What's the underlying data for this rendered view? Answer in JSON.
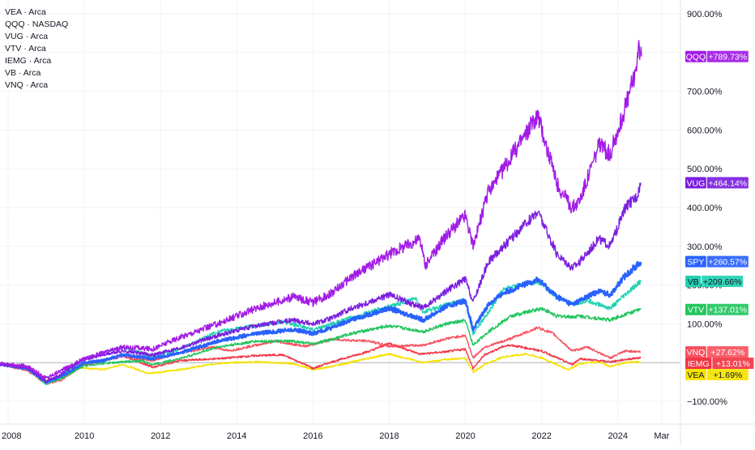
{
  "legend": [
    {
      "ticker": "VEA",
      "exchange": "Arca"
    },
    {
      "ticker": "QQQ",
      "exchange": "NASDAQ"
    },
    {
      "ticker": "VUG",
      "exchange": "Arca"
    },
    {
      "ticker": "VTV",
      "exchange": "Arca"
    },
    {
      "ticker": "IEMG",
      "exchange": "Arca"
    },
    {
      "ticker": "VB",
      "exchange": "Arca"
    },
    {
      "ticker": "VNQ",
      "exchange": "Arca"
    }
  ],
  "chart_data": {
    "type": "line",
    "y_unit": "% change",
    "ylim": [
      -160,
      960
    ],
    "xlim": [
      2008.0,
      2025.6
    ],
    "grid": true,
    "y_ticks": [
      {
        "v": 900,
        "label": "900.00%"
      },
      {
        "v": 700,
        "label": "700.00%"
      },
      {
        "v": 600,
        "label": "600.00%"
      },
      {
        "v": 500,
        "label": "500.00%"
      },
      {
        "v": 400,
        "label": "400.00%"
      },
      {
        "v": 300,
        "label": "300.00%"
      },
      {
        "v": 200,
        "label": "200.00%"
      },
      {
        "v": 100,
        "label": "100.00%"
      },
      {
        "v": -100,
        "label": "−100.00%"
      }
    ],
    "x_ticks": [
      {
        "v": 2008.0,
        "label": "2008"
      },
      {
        "v": 2010.0,
        "label": "2010"
      },
      {
        "v": 2012.0,
        "label": "2012"
      },
      {
        "v": 2014.0,
        "label": "2014"
      },
      {
        "v": 2016.0,
        "label": "2016"
      },
      {
        "v": 2018.0,
        "label": "2018"
      },
      {
        "v": 2020.0,
        "label": "2020"
      },
      {
        "v": 2022.0,
        "label": "2022"
      },
      {
        "v": 2024.0,
        "label": "2024"
      },
      {
        "v": 2025.15,
        "label": "Mar"
      }
    ],
    "series": [
      {
        "name": "VEA",
        "color": "#f5e300",
        "width": 1.4,
        "label": "+1.69%",
        "last": 1.69,
        "label_text_color": "#131722",
        "points": [
          [
            2007.5,
            0
          ],
          [
            2008.5,
            -10
          ],
          [
            2009.0,
            -45
          ],
          [
            2009.3,
            -38
          ],
          [
            2009.8,
            -12
          ],
          [
            2010.5,
            -18
          ],
          [
            2011.0,
            -5
          ],
          [
            2011.7,
            -28
          ],
          [
            2012.5,
            -18
          ],
          [
            2013.5,
            -2
          ],
          [
            2014.5,
            2
          ],
          [
            2015.5,
            -3
          ],
          [
            2016.0,
            -18
          ],
          [
            2016.5,
            -10
          ],
          [
            2017.5,
            12
          ],
          [
            2018.0,
            22
          ],
          [
            2018.9,
            0
          ],
          [
            2019.5,
            8
          ],
          [
            2020.0,
            12
          ],
          [
            2020.2,
            -25
          ],
          [
            2020.5,
            -5
          ],
          [
            2021.0,
            15
          ],
          [
            2021.6,
            22
          ],
          [
            2022.0,
            12
          ],
          [
            2022.7,
            -18
          ],
          [
            2023.0,
            -3
          ],
          [
            2023.5,
            2
          ],
          [
            2023.8,
            -10
          ],
          [
            2024.2,
            0
          ],
          [
            2024.6,
            2
          ]
        ]
      },
      {
        "name": "IEMG",
        "color": "#f23645",
        "width": 1.4,
        "label": "+13.01%",
        "last": 13.01,
        "label_text_color": "#ffffff",
        "points": [
          [
            2007.5,
            0
          ],
          [
            2008.5,
            -12
          ],
          [
            2009.0,
            -55
          ],
          [
            2009.3,
            -45
          ],
          [
            2010.0,
            -5
          ],
          [
            2010.7,
            10
          ],
          [
            2011.0,
            18
          ],
          [
            2011.8,
            -12
          ],
          [
            2012.5,
            5
          ],
          [
            2013.5,
            10
          ],
          [
            2014.5,
            18
          ],
          [
            2015.2,
            20
          ],
          [
            2015.8,
            -5
          ],
          [
            2016.0,
            -15
          ],
          [
            2016.5,
            2
          ],
          [
            2017.5,
            30
          ],
          [
            2018.0,
            50
          ],
          [
            2018.8,
            22
          ],
          [
            2019.5,
            28
          ],
          [
            2020.0,
            35
          ],
          [
            2020.2,
            -15
          ],
          [
            2020.5,
            20
          ],
          [
            2021.0,
            42
          ],
          [
            2021.2,
            45
          ],
          [
            2022.0,
            30
          ],
          [
            2022.8,
            -5
          ],
          [
            2023.0,
            10
          ],
          [
            2023.8,
            2
          ],
          [
            2024.2,
            8
          ],
          [
            2024.6,
            13
          ]
        ]
      },
      {
        "name": "VNQ",
        "color": "#f7525f",
        "width": 1.4,
        "label": "+27.62%",
        "last": 27.62,
        "label_text_color": "#ffffff",
        "points": [
          [
            2007.5,
            0
          ],
          [
            2008.5,
            -20
          ],
          [
            2009.0,
            -55
          ],
          [
            2009.4,
            -45
          ],
          [
            2010.0,
            -5
          ],
          [
            2011.0,
            15
          ],
          [
            2011.8,
            5
          ],
          [
            2012.5,
            25
          ],
          [
            2013.4,
            40
          ],
          [
            2013.8,
            30
          ],
          [
            2014.5,
            45
          ],
          [
            2015.0,
            55
          ],
          [
            2015.8,
            42
          ],
          [
            2016.5,
            60
          ],
          [
            2017.5,
            55
          ],
          [
            2018.0,
            42
          ],
          [
            2018.9,
            45
          ],
          [
            2019.5,
            62
          ],
          [
            2020.0,
            70
          ],
          [
            2020.2,
            12
          ],
          [
            2020.5,
            40
          ],
          [
            2021.0,
            55
          ],
          [
            2021.9,
            90
          ],
          [
            2022.3,
            75
          ],
          [
            2022.8,
            30
          ],
          [
            2023.2,
            40
          ],
          [
            2023.8,
            12
          ],
          [
            2024.2,
            30
          ],
          [
            2024.6,
            28
          ]
        ]
      },
      {
        "name": "VTV",
        "color": "#22c55e",
        "width": 1.4,
        "label": "+137.01%",
        "last": 137.01,
        "label_text_color": "#ffffff",
        "points": [
          [
            2007.5,
            0
          ],
          [
            2008.5,
            -15
          ],
          [
            2009.0,
            -55
          ],
          [
            2009.4,
            -40
          ],
          [
            2010.0,
            -8
          ],
          [
            2010.5,
            -2
          ],
          [
            2011.5,
            5
          ],
          [
            2011.8,
            -5
          ],
          [
            2012.5,
            10
          ],
          [
            2013.5,
            40
          ],
          [
            2014.5,
            55
          ],
          [
            2015.5,
            55
          ],
          [
            2016.0,
            48
          ],
          [
            2016.5,
            60
          ],
          [
            2017.0,
            75
          ],
          [
            2018.0,
            95
          ],
          [
            2018.9,
            80
          ],
          [
            2019.5,
            100
          ],
          [
            2020.0,
            108
          ],
          [
            2020.2,
            45
          ],
          [
            2020.6,
            80
          ],
          [
            2021.2,
            120
          ],
          [
            2022.0,
            140
          ],
          [
            2022.4,
            120
          ],
          [
            2022.8,
            118
          ],
          [
            2023.0,
            120
          ],
          [
            2023.8,
            110
          ],
          [
            2024.2,
            125
          ],
          [
            2024.6,
            137
          ]
        ]
      },
      {
        "name": "VB",
        "color": "#22d1b2",
        "width": 1.4,
        "label": "+209.66%",
        "last": 209.66,
        "label_text_color": "#131722",
        "points": [
          [
            2007.5,
            0
          ],
          [
            2008.5,
            -15
          ],
          [
            2009.0,
            -55
          ],
          [
            2009.4,
            -35
          ],
          [
            2010.0,
            10
          ],
          [
            2011.0,
            40
          ],
          [
            2011.8,
            15
          ],
          [
            2012.5,
            35
          ],
          [
            2013.5,
            80
          ],
          [
            2014.5,
            95
          ],
          [
            2015.2,
            105
          ],
          [
            2016.0,
            85
          ],
          [
            2016.5,
            100
          ],
          [
            2017.5,
            130
          ],
          [
            2018.7,
            165
          ],
          [
            2018.9,
            130
          ],
          [
            2019.5,
            150
          ],
          [
            2020.0,
            160
          ],
          [
            2020.2,
            75
          ],
          [
            2020.6,
            130
          ],
          [
            2021.0,
            190
          ],
          [
            2021.9,
            210
          ],
          [
            2022.4,
            170
          ],
          [
            2022.8,
            150
          ],
          [
            2023.2,
            160
          ],
          [
            2023.8,
            140
          ],
          [
            2024.2,
            175
          ],
          [
            2024.6,
            210
          ]
        ]
      },
      {
        "name": "SPY",
        "color": "#2962ff",
        "width": 2.4,
        "label": "+260.57%",
        "last": 260.57,
        "label_text_color": "#ffffff",
        "points": [
          [
            2007.5,
            0
          ],
          [
            2008.5,
            -15
          ],
          [
            2009.0,
            -50
          ],
          [
            2009.4,
            -35
          ],
          [
            2010.0,
            0
          ],
          [
            2010.5,
            5
          ],
          [
            2011.0,
            20
          ],
          [
            2011.8,
            10
          ],
          [
            2012.5,
            25
          ],
          [
            2013.5,
            55
          ],
          [
            2014.5,
            75
          ],
          [
            2015.5,
            85
          ],
          [
            2016.0,
            75
          ],
          [
            2016.5,
            90
          ],
          [
            2017.0,
            110
          ],
          [
            2018.0,
            140
          ],
          [
            2018.9,
            110
          ],
          [
            2019.5,
            145
          ],
          [
            2020.0,
            160
          ],
          [
            2020.2,
            85
          ],
          [
            2020.6,
            150
          ],
          [
            2021.0,
            180
          ],
          [
            2021.9,
            215
          ],
          [
            2022.4,
            170
          ],
          [
            2022.8,
            150
          ],
          [
            2023.0,
            160
          ],
          [
            2023.5,
            185
          ],
          [
            2023.8,
            175
          ],
          [
            2024.2,
            225
          ],
          [
            2024.6,
            260
          ]
        ]
      },
      {
        "name": "VUG",
        "color": "#7b1fe0",
        "width": 1.4,
        "label": "+464.14%",
        "last": 464.14,
        "label_text_color": "#ffffff",
        "points": [
          [
            2007.5,
            0
          ],
          [
            2008.5,
            -12
          ],
          [
            2009.0,
            -50
          ],
          [
            2009.4,
            -30
          ],
          [
            2010.0,
            10
          ],
          [
            2011.0,
            30
          ],
          [
            2011.8,
            20
          ],
          [
            2012.5,
            38
          ],
          [
            2013.5,
            70
          ],
          [
            2014.5,
            95
          ],
          [
            2015.5,
            110
          ],
          [
            2016.0,
            100
          ],
          [
            2016.5,
            115
          ],
          [
            2017.0,
            140
          ],
          [
            2018.0,
            175
          ],
          [
            2018.9,
            140
          ],
          [
            2019.5,
            185
          ],
          [
            2020.0,
            215
          ],
          [
            2020.2,
            155
          ],
          [
            2020.6,
            260
          ],
          [
            2021.0,
            300
          ],
          [
            2021.9,
            390
          ],
          [
            2022.4,
            280
          ],
          [
            2022.8,
            245
          ],
          [
            2023.0,
            260
          ],
          [
            2023.5,
            320
          ],
          [
            2023.8,
            300
          ],
          [
            2024.2,
            400
          ],
          [
            2024.4,
            420
          ],
          [
            2024.5,
            430
          ],
          [
            2024.6,
            464
          ]
        ]
      },
      {
        "name": "QQQ",
        "color": "#a21ce6",
        "width": 1.4,
        "label": "+789.73%",
        "last": 789.73,
        "label_text_color": "#ffffff",
        "points": [
          [
            2007.5,
            0
          ],
          [
            2008.5,
            -10
          ],
          [
            2009.0,
            -40
          ],
          [
            2009.4,
            -20
          ],
          [
            2010.0,
            10
          ],
          [
            2011.0,
            40
          ],
          [
            2011.8,
            35
          ],
          [
            2012.5,
            65
          ],
          [
            2013.5,
            100
          ],
          [
            2014.5,
            140
          ],
          [
            2015.5,
            170
          ],
          [
            2016.0,
            155
          ],
          [
            2016.5,
            180
          ],
          [
            2017.0,
            220
          ],
          [
            2018.0,
            280
          ],
          [
            2018.8,
            320
          ],
          [
            2018.95,
            250
          ],
          [
            2019.5,
            330
          ],
          [
            2020.0,
            380
          ],
          [
            2020.2,
            300
          ],
          [
            2020.6,
            440
          ],
          [
            2021.0,
            500
          ],
          [
            2021.9,
            640
          ],
          [
            2022.4,
            460
          ],
          [
            2022.8,
            400
          ],
          [
            2023.0,
            420
          ],
          [
            2023.5,
            560
          ],
          [
            2023.8,
            540
          ],
          [
            2024.2,
            660
          ],
          [
            2024.4,
            730
          ],
          [
            2024.55,
            800
          ],
          [
            2024.62,
            790
          ]
        ]
      }
    ]
  }
}
